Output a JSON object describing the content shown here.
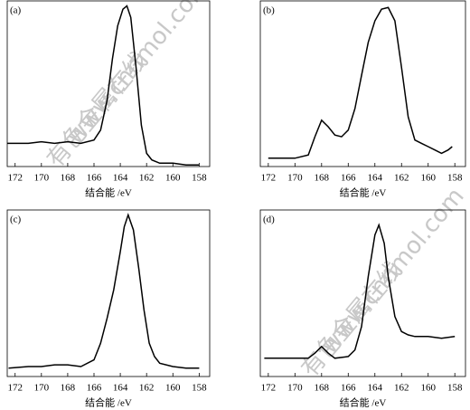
{
  "chart_data": [
    {
      "type": "line",
      "title": "(a)",
      "xlabel": "结合能 /eV",
      "xlim": [
        172.6,
        157.2
      ],
      "ylim": [
        0,
        100
      ],
      "xticks": [
        172,
        170,
        168,
        166,
        164,
        162,
        160,
        158
      ],
      "watermark_text": "有色金属在线",
      "watermark_url": "www.cnnmol.com",
      "series": [
        {
          "color": "#000000",
          "x": [
            172.6,
            171,
            170,
            169,
            168,
            167,
            166,
            165.5,
            165,
            164.6,
            164.2,
            163.8,
            163.5,
            163.2,
            162.8,
            162.4,
            162,
            161.6,
            161,
            160,
            159,
            158
          ],
          "values": [
            14,
            14,
            15,
            14,
            15,
            14,
            16,
            22,
            40,
            65,
            85,
            95,
            97,
            90,
            60,
            25,
            8,
            4,
            2,
            2,
            1,
            1
          ]
        }
      ]
    },
    {
      "type": "line",
      "title": "(b)",
      "xlabel": "结合能 /eV",
      "xlim": [
        172.6,
        157.2
      ],
      "ylim": [
        0,
        100
      ],
      "xticks": [
        172,
        170,
        168,
        166,
        164,
        162,
        160,
        158
      ],
      "series": [
        {
          "color": "#000000",
          "x": [
            172,
            171,
            170,
            169,
            168.5,
            168,
            167.5,
            167,
            166.5,
            166,
            165.5,
            165,
            164.5,
            164,
            163.5,
            163,
            162.5,
            162,
            161.5,
            161,
            160.5,
            160,
            159.5,
            159,
            158.5,
            158.2
          ],
          "values": [
            5,
            5,
            5,
            7,
            18,
            28,
            24,
            19,
            18,
            22,
            35,
            55,
            75,
            88,
            95,
            96,
            88,
            60,
            30,
            16,
            14,
            12,
            10,
            8,
            10,
            12
          ]
        }
      ]
    },
    {
      "type": "line",
      "title": "(c)",
      "xlabel": "结合能 /eV",
      "xlim": [
        172.6,
        157.2
      ],
      "ylim": [
        0,
        100
      ],
      "xticks": [
        172,
        170,
        168,
        166,
        164,
        162,
        160,
        158
      ],
      "series": [
        {
          "color": "#000000",
          "x": [
            172.5,
            171,
            170,
            169,
            168,
            167,
            166,
            165.5,
            165,
            164.5,
            164,
            163.7,
            163.4,
            163,
            162.6,
            162.2,
            161.8,
            161.4,
            161,
            160,
            159,
            158
          ],
          "values": [
            5,
            6,
            6,
            7,
            7,
            6,
            10,
            20,
            35,
            52,
            75,
            90,
            97,
            88,
            65,
            40,
            20,
            12,
            8,
            6,
            5,
            5
          ]
        }
      ]
    },
    {
      "type": "line",
      "title": "(d)",
      "xlabel": "结合能 /eV",
      "xlim": [
        172.6,
        157.2
      ],
      "ylim": [
        0,
        100
      ],
      "xticks": [
        172,
        170,
        168,
        166,
        164,
        162,
        160,
        158
      ],
      "watermark_text": "有色金属在线",
      "watermark_url": "www.cnnmol.com",
      "series": [
        {
          "color": "#000000",
          "x": [
            172.3,
            171,
            170,
            169,
            168.5,
            168,
            167.5,
            167,
            166,
            165.5,
            165,
            164.5,
            164,
            163.7,
            163.3,
            163,
            162.5,
            162,
            161.5,
            161,
            160,
            159,
            158
          ],
          "values": [
            11,
            11,
            11,
            11,
            14,
            18,
            14,
            11,
            12,
            16,
            30,
            60,
            85,
            91,
            80,
            60,
            36,
            27,
            25,
            24,
            24,
            23,
            24
          ]
        }
      ]
    }
  ]
}
